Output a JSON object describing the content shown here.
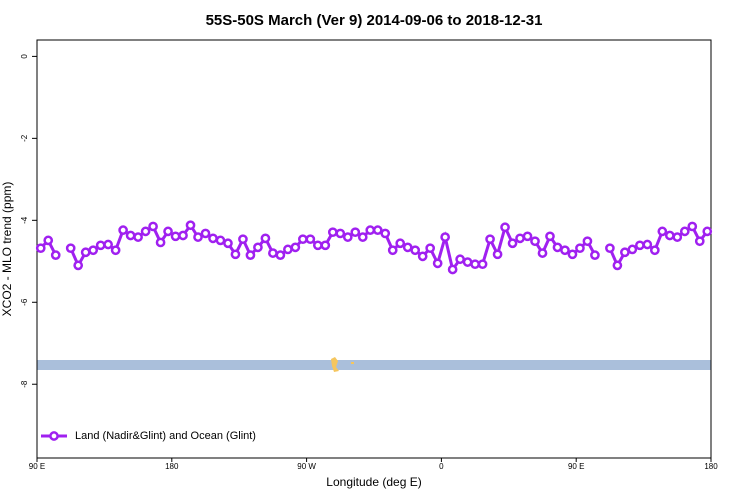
{
  "chart_data": {
    "type": "line",
    "title": "55S-50S March (Ver 9)   2014-09-06 to 2018-12-31",
    "xlabel": "Longitude (deg E)",
    "ylabel": "XCO2 - MLO trend (ppm)",
    "xlim": [
      90,
      540
    ],
    "ylim": [
      -9.8,
      0.4
    ],
    "xticks": [
      {
        "value": 90,
        "label": "90 E"
      },
      {
        "value": 180,
        "label": "180"
      },
      {
        "value": 270,
        "label": "90 W"
      },
      {
        "value": 360,
        "label": "0"
      },
      {
        "value": 450,
        "label": "90 E"
      },
      {
        "value": 540,
        "label": "180"
      }
    ],
    "yticks": [
      0,
      -2,
      -4,
      -6,
      -8
    ],
    "legend": "bottom-left",
    "x": [
      92.5,
      97.5,
      102.5,
      107.5,
      112.5,
      117.5,
      122.5,
      127.5,
      132.5,
      137.5,
      142.5,
      147.5,
      152.5,
      157.5,
      162.5,
      167.5,
      172.5,
      177.5,
      182.5,
      187.5,
      192.5,
      197.5,
      202.5,
      207.5,
      212.5,
      217.5,
      222.5,
      227.5,
      232.5,
      237.5,
      242.5,
      247.5,
      252.5,
      257.5,
      262.5,
      267.5,
      272.5,
      277.5,
      282.5,
      287.5,
      292.5,
      297.5,
      302.5,
      307.5,
      312.5,
      317.5,
      322.5,
      327.5,
      332.5,
      337.5,
      342.5,
      347.5,
      352.5,
      357.5,
      362.5,
      367.5,
      372.5,
      377.5,
      382.5,
      387.5,
      392.5,
      397.5,
      402.5,
      407.5,
      412.5,
      417.5,
      422.5,
      427.5,
      432.5,
      437.5,
      442.5,
      447.5,
      452.5,
      457.5,
      462.5,
      467.5,
      472.5,
      477.5,
      482.5,
      487.5,
      492.5,
      497.5,
      502.5,
      507.5,
      512.5,
      517.5,
      522.5,
      527.5,
      532.5,
      537.5
    ],
    "series": [
      {
        "name": "Land (Nadir&Glint) and Ocean (Glint)",
        "color": "#a020f0",
        "values": [
          -4.68,
          -4.49,
          -4.85,
          null,
          -4.68,
          -5.1,
          -4.78,
          -4.73,
          -4.61,
          -4.59,
          -4.73,
          -4.24,
          -4.37,
          -4.41,
          -4.27,
          -4.15,
          -4.54,
          -4.27,
          -4.39,
          -4.37,
          -4.12,
          -4.41,
          -4.32,
          -4.44,
          -4.49,
          -4.56,
          -4.83,
          -4.46,
          -4.85,
          -4.66,
          -4.44,
          -4.8,
          -4.85,
          -4.71,
          -4.66,
          -4.46,
          -4.46,
          -4.61,
          -4.61,
          -4.29,
          -4.32,
          -4.41,
          -4.29,
          -4.41,
          -4.24,
          -4.24,
          -4.32,
          -4.73,
          -4.56,
          -4.66,
          -4.73,
          -4.88,
          -4.68,
          -5.05,
          -4.41,
          -5.2,
          -4.95,
          -5.02,
          -5.07,
          -5.07,
          -4.46,
          -4.83,
          -4.17,
          -4.56,
          -4.44,
          -4.39,
          -4.51,
          -4.8,
          -4.39,
          -4.66,
          -4.73,
          -4.83,
          -4.68,
          -4.51,
          -4.85,
          null,
          -4.68,
          -5.1,
          -4.78,
          -4.71,
          -4.61,
          -4.59,
          -4.73,
          -4.27,
          -4.37,
          -4.41,
          -4.27,
          -4.15,
          -4.51,
          -4.27
        ]
      }
    ]
  }
}
